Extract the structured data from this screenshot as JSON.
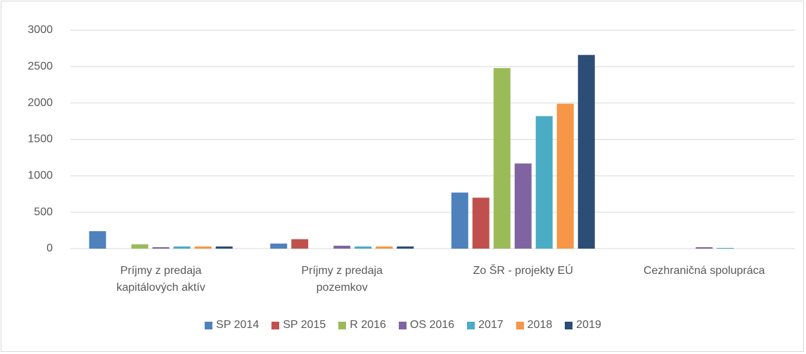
{
  "chart_data": {
    "type": "bar",
    "categories": [
      "Príjmy z predaja kapitálových aktív",
      "Príjmy z predaja pozemkov",
      "Zo ŠR - projekty EÚ",
      "Cezhraničná spolupráca"
    ],
    "series": [
      {
        "name": "SP 2014",
        "color": "#4f81bd",
        "values": [
          240,
          70,
          770,
          0
        ]
      },
      {
        "name": "SP 2015",
        "color": "#c0504d",
        "values": [
          0,
          130,
          700,
          0
        ]
      },
      {
        "name": "R 2016",
        "color": "#9bbb59",
        "values": [
          60,
          0,
          2480,
          0
        ]
      },
      {
        "name": "OS 2016",
        "color": "#8064a2",
        "values": [
          20,
          40,
          1170,
          20
        ]
      },
      {
        "name": "2017",
        "color": "#4bacc6",
        "values": [
          30,
          30,
          1820,
          10
        ]
      },
      {
        "name": "2018",
        "color": "#f79646",
        "values": [
          30,
          30,
          1990,
          0
        ]
      },
      {
        "name": "2019",
        "color": "#2c4d75",
        "values": [
          30,
          30,
          2660,
          0
        ]
      }
    ],
    "ylim": [
      0,
      3000
    ],
    "yticks": [
      0,
      500,
      1000,
      1500,
      2000,
      2500,
      3000
    ],
    "grid": true,
    "legend": "bottom"
  }
}
